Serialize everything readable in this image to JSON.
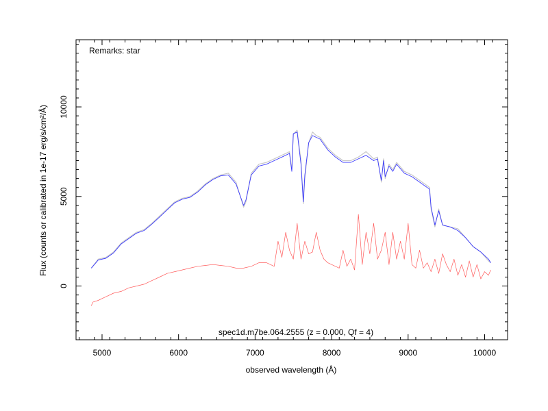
{
  "chart_data": {
    "type": "line",
    "title": "",
    "annotation_top_left": "Remarks: star",
    "annotation_bottom": "spec1d.m7be.064.2555 (z = 0.000, Qf = 4)",
    "xlabel": "observed wavelength (Å)",
    "ylabel": "Flux (counts or calibrated in 1e-17 erg/s/cm²/Å)",
    "xlim": [
      4660,
      10300
    ],
    "ylim": [
      -3000,
      13750
    ],
    "x_ticks": [
      5000,
      6000,
      7000,
      8000,
      9000,
      10000
    ],
    "y_ticks": [
      0,
      5000,
      10000
    ],
    "x_tick_labels": [
      "5000",
      "6000",
      "7000",
      "8000",
      "9000",
      "10000"
    ],
    "y_tick_labels": [
      "0",
      "5000",
      "10000"
    ],
    "grid": false,
    "colors": {
      "raw": "#c8c8c8",
      "smoothed": "#3b3bff",
      "error": "#ff5a5a"
    },
    "series": [
      {
        "role": "raw-flux",
        "x": [
          4860,
          4950,
          5050,
          5150,
          5250,
          5350,
          5450,
          5550,
          5650,
          5750,
          5850,
          5950,
          6050,
          6150,
          6250,
          6350,
          6450,
          6550,
          6650,
          6750,
          6850,
          6880,
          6950,
          7050,
          7150,
          7250,
          7350,
          7450,
          7480,
          7500,
          7550,
          7600,
          7630,
          7650,
          7700,
          7750,
          7800,
          7850,
          7900,
          7950,
          8050,
          8150,
          8250,
          8350,
          8450,
          8550,
          8600,
          8650,
          8680,
          8700,
          8750,
          8800,
          8850,
          8950,
          9050,
          9150,
          9250,
          9280,
          9300,
          9350,
          9400,
          9450,
          9550,
          9650,
          9750,
          9850,
          9950,
          10050,
          10080
        ],
        "y": [
          1000,
          1500,
          1600,
          1900,
          2400,
          2700,
          3000,
          3150,
          3500,
          3900,
          4300,
          4700,
          4900,
          5000,
          5300,
          5700,
          6000,
          6200,
          6300,
          5800,
          4400,
          4700,
          6300,
          6800,
          6900,
          7100,
          7300,
          7500,
          6500,
          8500,
          8700,
          7000,
          4600,
          6000,
          8000,
          8600,
          8400,
          8300,
          8000,
          7700,
          7300,
          7000,
          7000,
          7200,
          7500,
          7100,
          7200,
          5800,
          7100,
          6000,
          6800,
          6500,
          6900,
          6400,
          6200,
          5900,
          5600,
          5500,
          4300,
          3300,
          4300,
          3400,
          3300,
          3200,
          2700,
          2200,
          1900,
          1400,
          1300
        ]
      },
      {
        "role": "smoothed-flux",
        "x": [
          4860,
          4950,
          5050,
          5150,
          5250,
          5350,
          5450,
          5550,
          5650,
          5750,
          5850,
          5950,
          6050,
          6150,
          6250,
          6350,
          6450,
          6550,
          6650,
          6750,
          6850,
          6880,
          6950,
          7050,
          7150,
          7250,
          7350,
          7450,
          7480,
          7500,
          7550,
          7600,
          7630,
          7650,
          7700,
          7750,
          7800,
          7850,
          7900,
          7950,
          8050,
          8150,
          8250,
          8350,
          8450,
          8550,
          8600,
          8650,
          8680,
          8700,
          8750,
          8800,
          8850,
          8950,
          9050,
          9150,
          9250,
          9280,
          9300,
          9350,
          9400,
          9450,
          9550,
          9650,
          9750,
          9850,
          9950,
          10050,
          10080
        ],
        "y": [
          1000,
          1450,
          1550,
          1850,
          2350,
          2650,
          2950,
          3100,
          3450,
          3850,
          4250,
          4650,
          4850,
          4950,
          5250,
          5650,
          5950,
          6150,
          6200,
          5700,
          4500,
          4800,
          6200,
          6700,
          6800,
          7000,
          7200,
          7400,
          6400,
          8500,
          8600,
          6800,
          4700,
          6200,
          8000,
          8400,
          8300,
          8200,
          7900,
          7600,
          7200,
          6900,
          6900,
          7100,
          7300,
          7000,
          7100,
          5900,
          7000,
          6100,
          6700,
          6400,
          6800,
          6300,
          6100,
          5800,
          5500,
          5400,
          4400,
          3400,
          4200,
          3400,
          3300,
          3100,
          2700,
          2200,
          1900,
          1500,
          1300
        ]
      },
      {
        "role": "error",
        "x": [
          4860,
          4880,
          4950,
          5050,
          5150,
          5250,
          5350,
          5450,
          5550,
          5650,
          5750,
          5850,
          5950,
          6050,
          6150,
          6250,
          6350,
          6450,
          6550,
          6650,
          6750,
          6850,
          6950,
          7050,
          7150,
          7250,
          7300,
          7350,
          7400,
          7450,
          7500,
          7550,
          7600,
          7650,
          7700,
          7750,
          7800,
          7850,
          7900,
          7950,
          8050,
          8100,
          8150,
          8200,
          8250,
          8300,
          8350,
          8400,
          8450,
          8500,
          8550,
          8600,
          8650,
          8700,
          8750,
          8800,
          8850,
          8900,
          8950,
          9000,
          9050,
          9100,
          9150,
          9200,
          9250,
          9300,
          9350,
          9400,
          9450,
          9500,
          9550,
          9600,
          9650,
          9700,
          9750,
          9800,
          9850,
          9900,
          9950,
          10000,
          10050,
          10080
        ],
        "y": [
          -1100,
          -900,
          -800,
          -600,
          -400,
          -300,
          -100,
          0,
          100,
          300,
          500,
          700,
          800,
          900,
          1000,
          1100,
          1150,
          1200,
          1150,
          1100,
          1000,
          1000,
          1100,
          1300,
          1300,
          1100,
          2500,
          1600,
          3000,
          2000,
          1500,
          3500,
          1500,
          2500,
          1800,
          1900,
          3000,
          2000,
          1500,
          1300,
          1100,
          1000,
          2000,
          1100,
          1500,
          900,
          4000,
          1200,
          3000,
          1800,
          3500,
          1500,
          2000,
          3000,
          1200,
          3000,
          1500,
          2500,
          1500,
          3500,
          1200,
          1000,
          2000,
          1000,
          1300,
          800,
          1500,
          700,
          1800,
          1200,
          800,
          1500,
          600,
          1200,
          500,
          1400,
          500,
          1200,
          400,
          800,
          600,
          900
        ]
      }
    ]
  }
}
